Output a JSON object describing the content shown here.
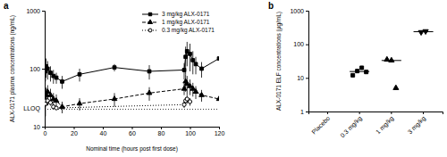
{
  "chart_data": [
    {
      "type": "line",
      "title": "a",
      "x_label": "Nominal time (hours post first dose)",
      "y_label": "ALX-0171 plasma concentrations (ng/mL)",
      "xlim": [
        0,
        120
      ],
      "xticks": [
        0,
        20,
        40,
        60,
        80,
        100,
        120
      ],
      "ylim": [
        10,
        1000
      ],
      "yticks": [
        10,
        100,
        1000
      ],
      "log": "y",
      "grid": false,
      "legend": "top-right",
      "annotations": [
        {
          "text": "LLOQ",
          "y": 20,
          "line_style": "dotted"
        }
      ],
      "series": [
        {
          "name": "3 mg/kg ALX-0171",
          "color": "#000000",
          "marker": "square",
          "line_style": "solid",
          "x": [
            0.5,
            1,
            2,
            4,
            6,
            8,
            12,
            24,
            48,
            72,
            96,
            97,
            98,
            100,
            102,
            104,
            108,
            120
          ],
          "values": [
            90,
            110,
            100,
            85,
            75,
            70,
            60,
            80,
            105,
            90,
            95,
            160,
            200,
            180,
            140,
            120,
            100,
            150
          ],
          "errors": [
            30,
            40,
            35,
            25,
            20,
            15,
            15,
            20,
            15,
            25,
            30,
            80,
            90,
            90,
            60,
            40,
            30,
            0
          ]
        },
        {
          "name": "1 mg/kg ALX-0171",
          "color": "#000000",
          "marker": "triangle",
          "line_style": "dashed",
          "x": [
            0.5,
            1,
            2,
            4,
            6,
            8,
            12,
            24,
            48,
            72,
            96,
            97,
            98,
            100,
            102,
            104,
            108,
            120
          ],
          "values": [
            25,
            35,
            40,
            35,
            30,
            28,
            22,
            25,
            30,
            38,
            45,
            60,
            55,
            50,
            45,
            40,
            35,
            30
          ],
          "errors": [
            10,
            12,
            12,
            10,
            8,
            8,
            5,
            6,
            8,
            10,
            10,
            20,
            20,
            15,
            12,
            10,
            8,
            0
          ]
        },
        {
          "name": "0.3 mg/kg ALX-0171",
          "color": "#000000",
          "marker": "open-circle",
          "line_style": "dotted",
          "x": [
            0.5,
            1,
            2,
            4,
            6,
            8,
            96,
            97,
            98,
            100
          ],
          "values": [
            25,
            28,
            28,
            26,
            22,
            21,
            24,
            28,
            30,
            27
          ],
          "errors": [
            3,
            4,
            4,
            3,
            2,
            0,
            3,
            4,
            5,
            4
          ]
        }
      ]
    },
    {
      "type": "scatter",
      "title": "b",
      "y_label": "ALX-0171 ELF concentrations (µg/mL)",
      "categories": [
        "Placebo",
        "0.3 mg/kg",
        "1 mg/kg",
        "3 mg/kg"
      ],
      "values": [
        [],
        [
          12,
          16,
          20,
          15
        ],
        [
          35,
          33,
          5
        ],
        [
          230,
          245
        ]
      ],
      "medians": [
        null,
        15.5,
        33,
        237
      ],
      "marker": [
        "square",
        "square",
        "triangle",
        "triangle-down"
      ],
      "color": "#000000",
      "ylim": [
        1,
        1000
      ],
      "yticks": [
        1,
        10,
        100,
        1000
      ],
      "log": "y",
      "grid": false
    }
  ]
}
